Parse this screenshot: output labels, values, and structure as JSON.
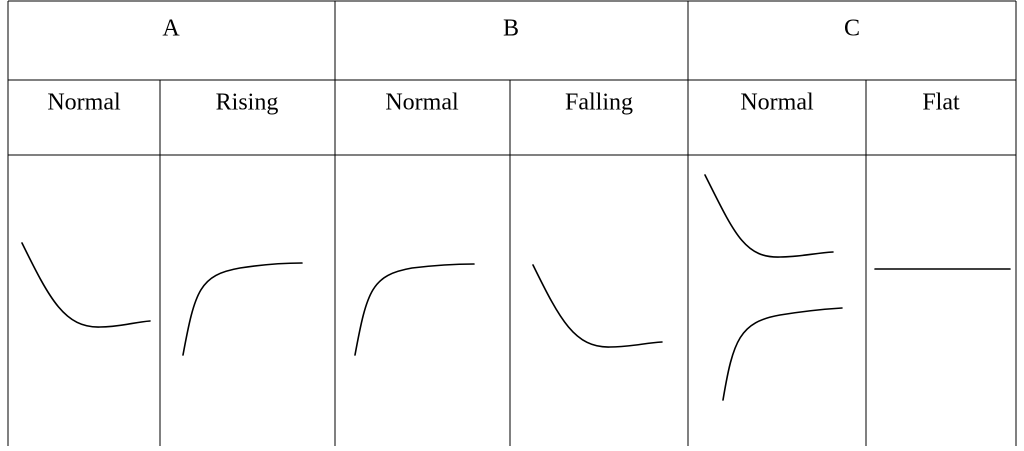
{
  "table": {
    "groups": [
      "A",
      "B",
      "C"
    ],
    "subheaders": [
      "Normal",
      "Rising",
      "Normal",
      "Falling",
      "Normal",
      "Flat"
    ]
  }
}
